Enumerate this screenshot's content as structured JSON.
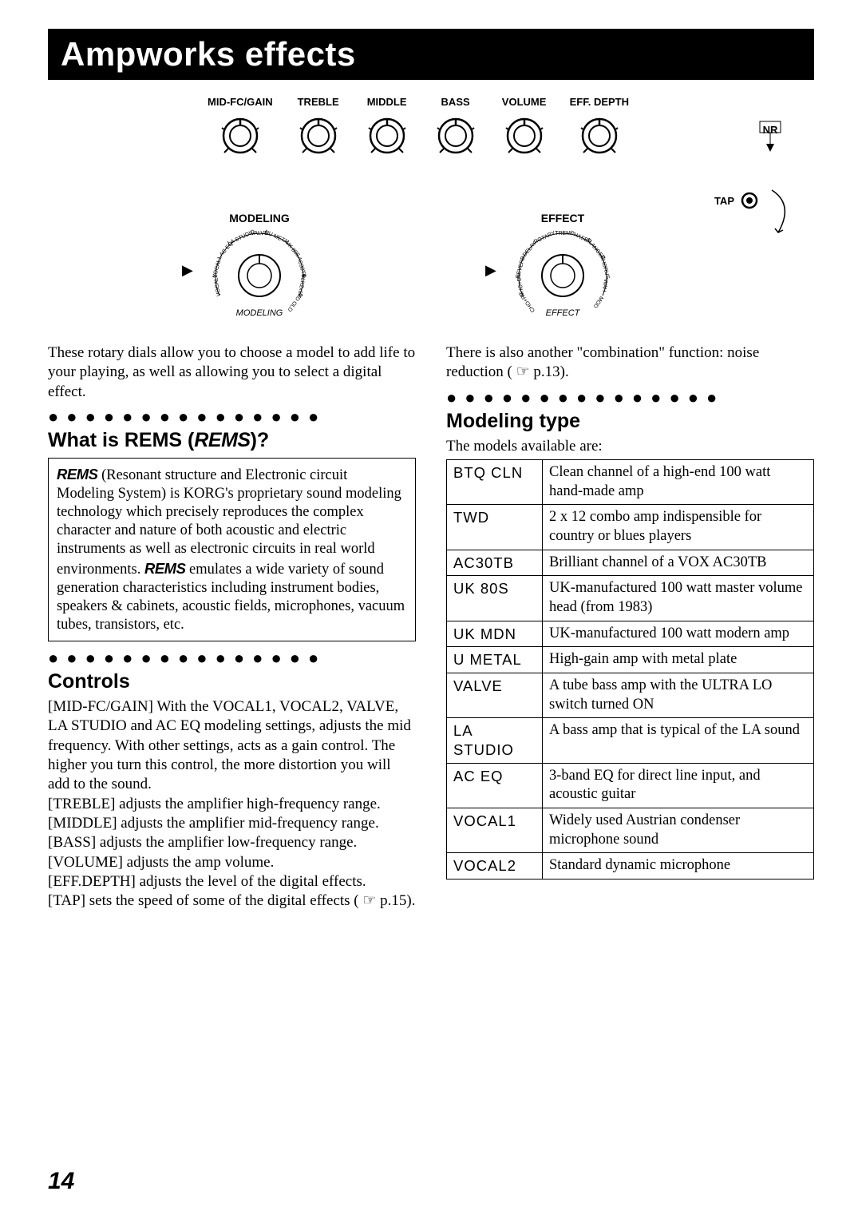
{
  "title": "Ampworks effects",
  "page_number": "14",
  "knobs": [
    "MID-FC/GAIN",
    "TREBLE",
    "MIDDLE",
    "BASS",
    "VOLUME",
    "EFF. DEPTH"
  ],
  "nr_label": "NR",
  "tap_label": "TAP",
  "selectors": {
    "modeling": {
      "title": "MODELING",
      "arc_label": "MODELING",
      "options_top": "VALVE · NU METAL · UK 80S · AC30TB · BLK2x12 · MD OLD",
      "options_side": "LA STUDIO · AC EQ · VOCAL1 · VOCAL2"
    },
    "effect": {
      "title": "EFFECT",
      "arc_label": "EFFECT",
      "options_top": "ROTARY · TREM · PHASER · FLANGER · CHORUS · WAH · MOD",
      "options_side": "DELAY · REVERB · CHO+DL · CHO+RV"
    }
  },
  "left": {
    "intro": "These rotary dials allow you to choose a model to add life to your playing, as well as allowing you to select a digital effect.",
    "rems_heading_prefix": "What is REMS (",
    "rems_heading_suffix": ")?",
    "rems_logo": "REMS",
    "rems_box": " (Resonant structure and Electronic circuit Modeling System) is KORG's proprietary sound modeling technology which precisely reproduces the complex character and nature of both acoustic and electric instruments as well as electronic circuits in real world environments. ",
    "rems_box2": " emulates a wide variety of sound generation characteristics including instrument bodies, speakers & cabinets, acoustic fields, microphones, vacuum tubes, transistors, etc.",
    "controls_heading": "Controls",
    "controls": [
      "[MID-FC/GAIN] With the VOCAL1, VOCAL2, VALVE, LA STUDIO and AC EQ modeling settings, adjusts the mid frequency. With other settings, acts as a gain control. The higher you turn this control, the more distortion you will add to the sound.",
      "[TREBLE] adjusts the amplifier high-frequency range.",
      "[MIDDLE] adjusts the amplifier mid-frequency range.",
      "[BASS] adjusts the amplifier low-frequency range.",
      "[VOLUME] adjusts the amp volume.",
      "[EFF.DEPTH] adjusts the level of the digital effects.",
      "[TAP] sets the speed of some of the digital effects ( ☞ p.15)."
    ]
  },
  "right": {
    "intro": "There is also another \"combination\" function: noise reduction ( ☞ p.13).",
    "modeling_heading": "Modeling type",
    "modeling_intro": "The models available are:",
    "table": [
      [
        "BTQ CLN",
        "Clean channel of a high-end 100 watt hand-made amp"
      ],
      [
        "TWD",
        "2 x 12 combo amp indispensible for country or blues players"
      ],
      [
        "AC30TB",
        "Brilliant channel of a VOX AC30TB"
      ],
      [
        "UK 80S",
        "UK-manufactured 100 watt master volume head (from 1983)"
      ],
      [
        "UK MDN",
        "UK-manufactured 100 watt modern amp"
      ],
      [
        "U METAL",
        "High-gain amp with metal plate"
      ],
      [
        "VALVE",
        "A tube bass amp with the ULTRA LO switch turned ON"
      ],
      [
        "LA STUDIO",
        "A bass amp that is typical of the LA sound"
      ],
      [
        "AC EQ",
        "3-band EQ for direct line input, and acoustic guitar"
      ],
      [
        "VOCAL1",
        "Widely used Austrian condenser microphone sound"
      ],
      [
        "VOCAL2",
        "Standard dynamic microphone"
      ]
    ]
  }
}
